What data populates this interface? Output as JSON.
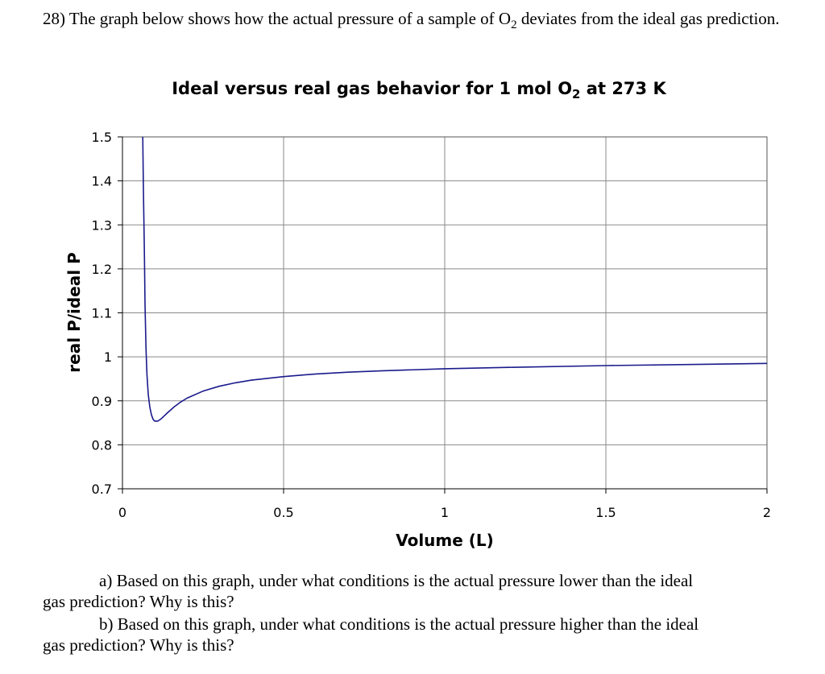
{
  "question": {
    "number": "28)",
    "text_before": "The graph below shows how the actual pressure of a sample of O",
    "subscript": "2",
    "text_after": " deviates from the ideal gas prediction."
  },
  "chart_data": {
    "type": "line",
    "title_main": "Ideal versus real gas behavior for 1 mol O",
    "title_sub": "2",
    "title_tail": " at 273 K",
    "xlabel": "Volume (L)",
    "ylabel": "real P/ideal P",
    "xlim": [
      0,
      2
    ],
    "ylim": [
      0.7,
      1.5
    ],
    "xticks": [
      0,
      0.5,
      1,
      1.5,
      2
    ],
    "xtick_labels": [
      "0",
      "0.5",
      "1",
      "1.5",
      "2"
    ],
    "yticks": [
      0.7,
      0.8,
      0.9,
      1,
      1.1,
      1.2,
      1.3,
      1.4,
      1.5
    ],
    "ytick_labels": [
      "0.7",
      "0.8",
      "0.9",
      "1",
      "1.1",
      "1.2",
      "1.3",
      "1.4",
      "1.5"
    ],
    "grid": true,
    "line_color": "#1a1a8c",
    "series": [
      {
        "x": [
          0.063,
          0.065,
          0.068,
          0.07,
          0.073,
          0.076,
          0.08,
          0.085,
          0.09,
          0.095,
          0.1,
          0.11,
          0.12,
          0.13,
          0.14,
          0.16,
          0.18,
          0.2,
          0.25,
          0.3,
          0.35,
          0.4,
          0.5,
          0.6,
          0.7,
          0.8,
          1.0,
          1.2,
          1.5,
          1.8,
          2.0
        ],
        "values": [
          1.5,
          1.38,
          1.24,
          1.12,
          1.02,
          0.96,
          0.915,
          0.885,
          0.868,
          0.858,
          0.854,
          0.854,
          0.859,
          0.866,
          0.873,
          0.886,
          0.897,
          0.906,
          0.922,
          0.933,
          0.941,
          0.947,
          0.955,
          0.961,
          0.965,
          0.968,
          0.973,
          0.976,
          0.98,
          0.983,
          0.985
        ]
      }
    ]
  },
  "parts": [
    {
      "label": "a)",
      "line1": "Based on this graph, under what conditions is the actual pressure lower than the ideal",
      "line2": "gas prediction?  Why is this?"
    },
    {
      "label": "b)",
      "line1": "Based on this graph, under what conditions is the actual pressure higher than the ideal",
      "line2": "gas prediction?  Why is this?"
    }
  ]
}
